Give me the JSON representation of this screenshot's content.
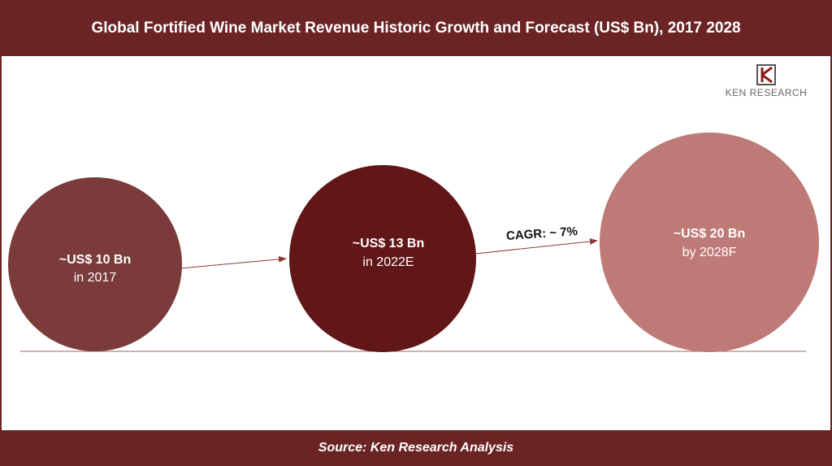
{
  "header": {
    "title": "Global  Fortified Wine Market Revenue Historic Growth and Forecast (US$ Bn), 2017 2028"
  },
  "logo": {
    "text": "KEN RESEARCH"
  },
  "nodes": [
    {
      "value": "~US$ 10 Bn",
      "label": "in 2017"
    },
    {
      "value": "~US$ 13 Bn",
      "label": "in 2022E"
    },
    {
      "value": "~US$ 20 Bn",
      "label": "by 2028F"
    }
  ],
  "annotation": "CAGR: ~ 7%",
  "footer": {
    "source": "Source: Ken Research Analysis"
  }
}
